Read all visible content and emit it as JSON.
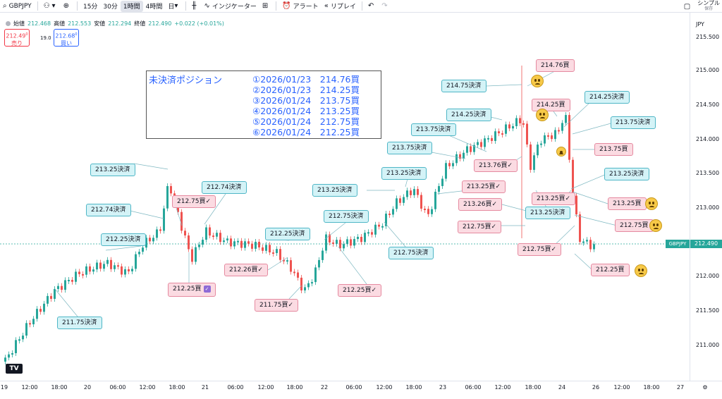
{
  "toolbar": {
    "symbol": "GBPJPY",
    "intervals": [
      "15分",
      "30分",
      "1時間",
      "4時間",
      "日"
    ],
    "indicators_label": "インジケーター",
    "alert_label": "アラート",
    "replay_label": "リプレイ",
    "right_label": "シンプル",
    "right_sub": "保存"
  },
  "ohlc": {
    "open_label": "始値",
    "open": "212.468",
    "high_label": "高値",
    "high": "212.553",
    "low_label": "安値",
    "low": "212.294",
    "close_label": "終値",
    "close": "212.490",
    "change": "+0.022 (+0.01%)"
  },
  "trade": {
    "sell_price": "212.49",
    "sell_sup": "0",
    "sell_label": "売り",
    "spread": "19.0",
    "buy_price": "212.68",
    "buy_sup": "0",
    "buy_label": "買い"
  },
  "price_axis": {
    "currency": "JPY",
    "labels": [
      "215.500",
      "215.000",
      "214.500",
      "214.000",
      "213.500",
      "213.000",
      "212.500",
      "212.000",
      "211.500",
      "211.000"
    ],
    "current_price": "212.490",
    "symbol_tag": "GBPJPY"
  },
  "time_axis": {
    "labels": [
      "19",
      "12:00",
      "18:00",
      "20",
      "06:00",
      "12:00",
      "18:00",
      "21",
      "06:00",
      "12:00",
      "18:00",
      "22",
      "06:00",
      "12:00",
      "18:00",
      "23",
      "06:00",
      "12:00",
      "18:00",
      "24",
      "26",
      "12:00",
      "18:00",
      "27"
    ]
  },
  "position_box": {
    "title": "未決済ポジション",
    "lines": [
      "①2026/01/23　214.76買",
      "②2026/01/23　214.25買",
      "③2026/01/24　213.75買",
      "④2026/01/24　213.25買",
      "⑤2026/01/24　212.75買",
      "⑥2026/01/24　212.25買"
    ]
  },
  "callouts": {
    "c1": "213.25決済",
    "c2": "212.74決済",
    "c3": "212.74決済",
    "c4": "212.75買✓",
    "c5": "212.25決済",
    "c6": "212.25買",
    "c7": "211.75決済",
    "c8": "212.25決済",
    "c9": "212.26買✓",
    "c10": "211.75買✓",
    "c11": "212.75決済",
    "c12": "212.25買✓",
    "c13": "213.25決済",
    "c14": "213.25決済",
    "c15": "212.75決済",
    "c16": "213.75決済",
    "c17": "213.75決済",
    "c18": "214.25決済",
    "c19": "214.75決済",
    "c20": "214.76買",
    "c21": "213.76買✓",
    "c22": "213.25買✓",
    "c23": "213.26買✓",
    "c24": "212.75買✓",
    "c25": "214.25買",
    "c26": "214.25決済",
    "c27": "213.75決済",
    "c28": "213.75買",
    "c29": "213.25決済",
    "c30": "213.25買✓",
    "c31": "213.25決済",
    "c32": "213.25買",
    "c33": "212.75買",
    "c34": "212.75買✓",
    "c35": "212.25買"
  },
  "colors": {
    "up": "#26a69a",
    "down": "#ef5350",
    "accent": "#2962ff"
  }
}
